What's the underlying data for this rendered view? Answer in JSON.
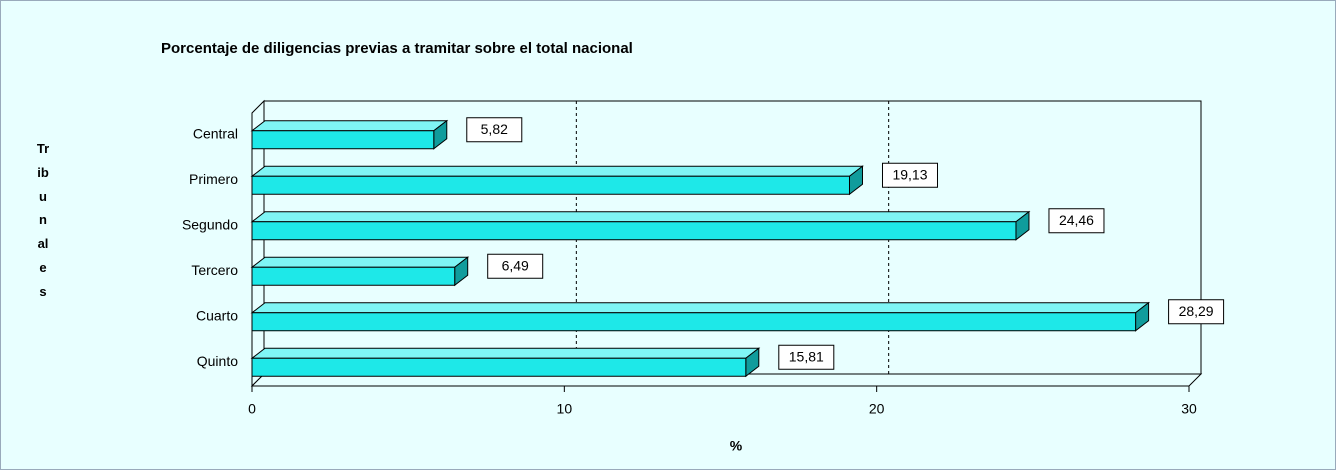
{
  "chart_data": {
    "type": "bar3d_horizontal",
    "title": "Porcentaje de diligencias previas a tramitar sobre el total nacional",
    "y_label": "Tribunales",
    "x_label": "%",
    "categories": [
      "Central",
      "Primero",
      "Segundo",
      "Tercero",
      "Cuarto",
      "Quinto"
    ],
    "values": [
      5.82,
      19.13,
      24.46,
      6.49,
      28.29,
      15.81
    ],
    "value_labels": [
      "5,82",
      "19,13",
      "24,46",
      "6,49",
      "28,29",
      "15,81"
    ],
    "color": "#1ee8e8",
    "xlim": [
      0,
      30
    ],
    "xticks": [
      0,
      10,
      20,
      30
    ],
    "grid": true
  }
}
